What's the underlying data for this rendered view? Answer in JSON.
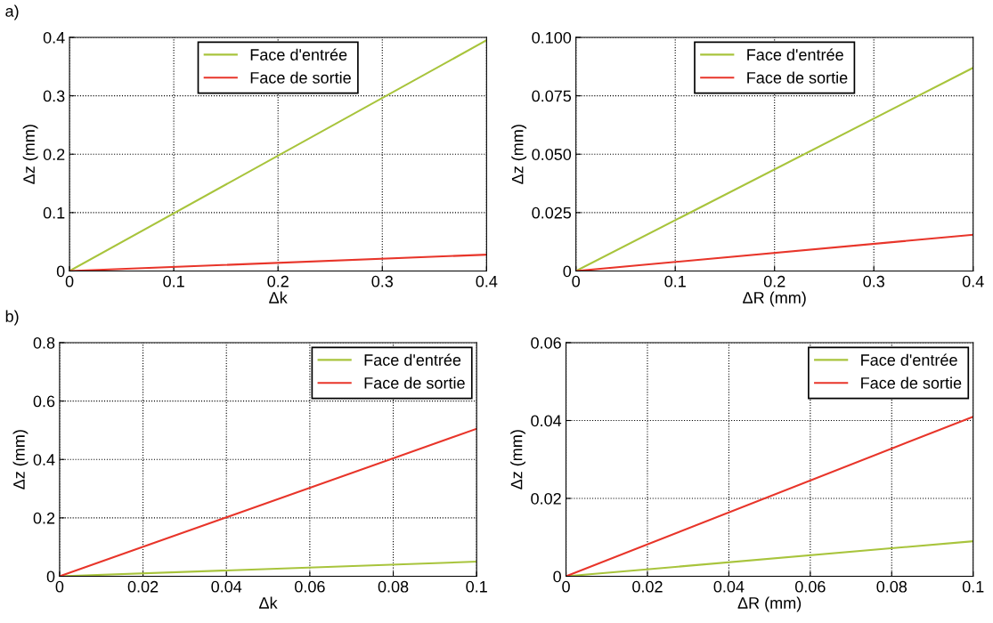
{
  "chart_data": [
    {
      "type": "line",
      "x": [
        0,
        0.4
      ],
      "xlabel": "Δk",
      "ylabel": "Δz (mm)",
      "annotations": [
        "a)"
      ],
      "xlim": [
        0,
        0.4
      ],
      "ylim": [
        0,
        0.4
      ],
      "xticks": [
        0,
        0.1,
        0.2,
        0.3,
        0.4
      ],
      "yticks": [
        0,
        0.1,
        0.2,
        0.3,
        0.4
      ],
      "grid": true,
      "legend": "top",
      "line_style": "solid",
      "series": [
        {
          "name": "Face d'entrée",
          "color": "#a8c43c",
          "values": [
            0,
            0.395
          ]
        },
        {
          "name": "Face de sortie",
          "color": "#e8352a",
          "values": [
            0,
            0.028
          ]
        }
      ]
    },
    {
      "type": "line",
      "x": [
        0,
        0.4
      ],
      "xlabel": "ΔR (mm)",
      "ylabel": "Δz (mm)",
      "xlim": [
        0,
        0.4
      ],
      "ylim": [
        0,
        0.1
      ],
      "xticks": [
        0,
        0.1,
        0.2,
        0.3,
        0.4
      ],
      "yticks": [
        0,
        0.025,
        {
          "value": 0.05,
          "label": "0.050"
        },
        0.075,
        {
          "value": 0.1,
          "label": "0.100"
        }
      ],
      "grid": true,
      "legend": "top",
      "line_style": "solid",
      "series": [
        {
          "name": "Face d'entrée",
          "color": "#a8c43c",
          "values": [
            0,
            0.087
          ]
        },
        {
          "name": "Face de sortie",
          "color": "#e8352a",
          "values": [
            0,
            0.0155
          ]
        }
      ]
    },
    {
      "type": "line",
      "x": [
        0,
        0.1
      ],
      "xlabel": "Δk",
      "ylabel": "Δz (mm)",
      "annotations": [
        "b)"
      ],
      "xlim": [
        0,
        0.1
      ],
      "ylim": [
        0,
        0.8
      ],
      "xticks": [
        0,
        0.02,
        0.04,
        0.06,
        0.08,
        0.1
      ],
      "yticks": [
        0,
        0.2,
        0.4,
        0.6,
        0.8
      ],
      "grid": true,
      "legend": "top right",
      "line_style": "solid",
      "series": [
        {
          "name": "Face d'entrée",
          "color": "#a8c43c",
          "values": [
            0,
            0.05
          ]
        },
        {
          "name": "Face de sortie",
          "color": "#e8352a",
          "values": [
            0,
            0.505
          ]
        }
      ]
    },
    {
      "type": "line",
      "x": [
        0,
        0.1
      ],
      "xlabel": "ΔR (mm)",
      "ylabel": "Δz (mm)",
      "xlim": [
        0,
        0.1
      ],
      "ylim": [
        0,
        0.06
      ],
      "xticks": [
        0,
        0.02,
        0.04,
        0.06,
        0.08,
        0.1
      ],
      "yticks": [
        0,
        0.02,
        0.04,
        0.06
      ],
      "grid": true,
      "legend": "top right",
      "line_style": "solid",
      "series": [
        {
          "name": "Face d'entrée",
          "color": "#a8c43c",
          "values": [
            0,
            0.009
          ]
        },
        {
          "name": "Face de sortie",
          "color": "#e8352a",
          "values": [
            0,
            0.041
          ]
        }
      ]
    }
  ]
}
